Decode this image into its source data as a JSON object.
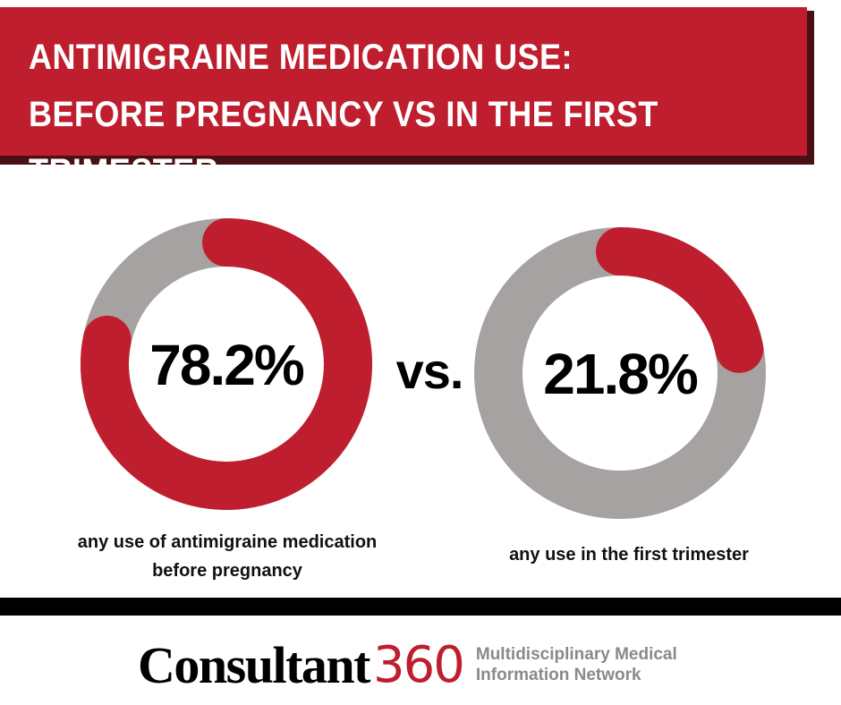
{
  "title": "ANTIMIGRAINE MEDICATION USE: BEFORE PREGNANCY VS IN THE FIRST TRIMESTER",
  "colors": {
    "banner": "#be1e2d",
    "banner_shadow": "#4a1114",
    "highlight": "#be1e2d",
    "remainder": "#a7a2a2",
    "brand_accent": "#be1e2d"
  },
  "chart_data": [
    {
      "type": "pie",
      "variant": "donut",
      "value": 78.2,
      "value_label": "78.2%",
      "caption": "any use of antimigraine medication before pregnancy",
      "caption_lines": [
        "any use of antimigraine medication",
        "before pregnancy"
      ]
    },
    {
      "type": "pie",
      "variant": "donut",
      "value": 21.8,
      "value_label": "21.8%",
      "caption": "any use in the first trimester",
      "caption_lines": [
        "any use in the first trimester"
      ]
    }
  ],
  "separator": "vs.",
  "footer": {
    "brand_name": "Consultant",
    "brand_number": "360",
    "tagline_lines": [
      "Multidisciplinary Medical",
      "Information Network"
    ]
  }
}
